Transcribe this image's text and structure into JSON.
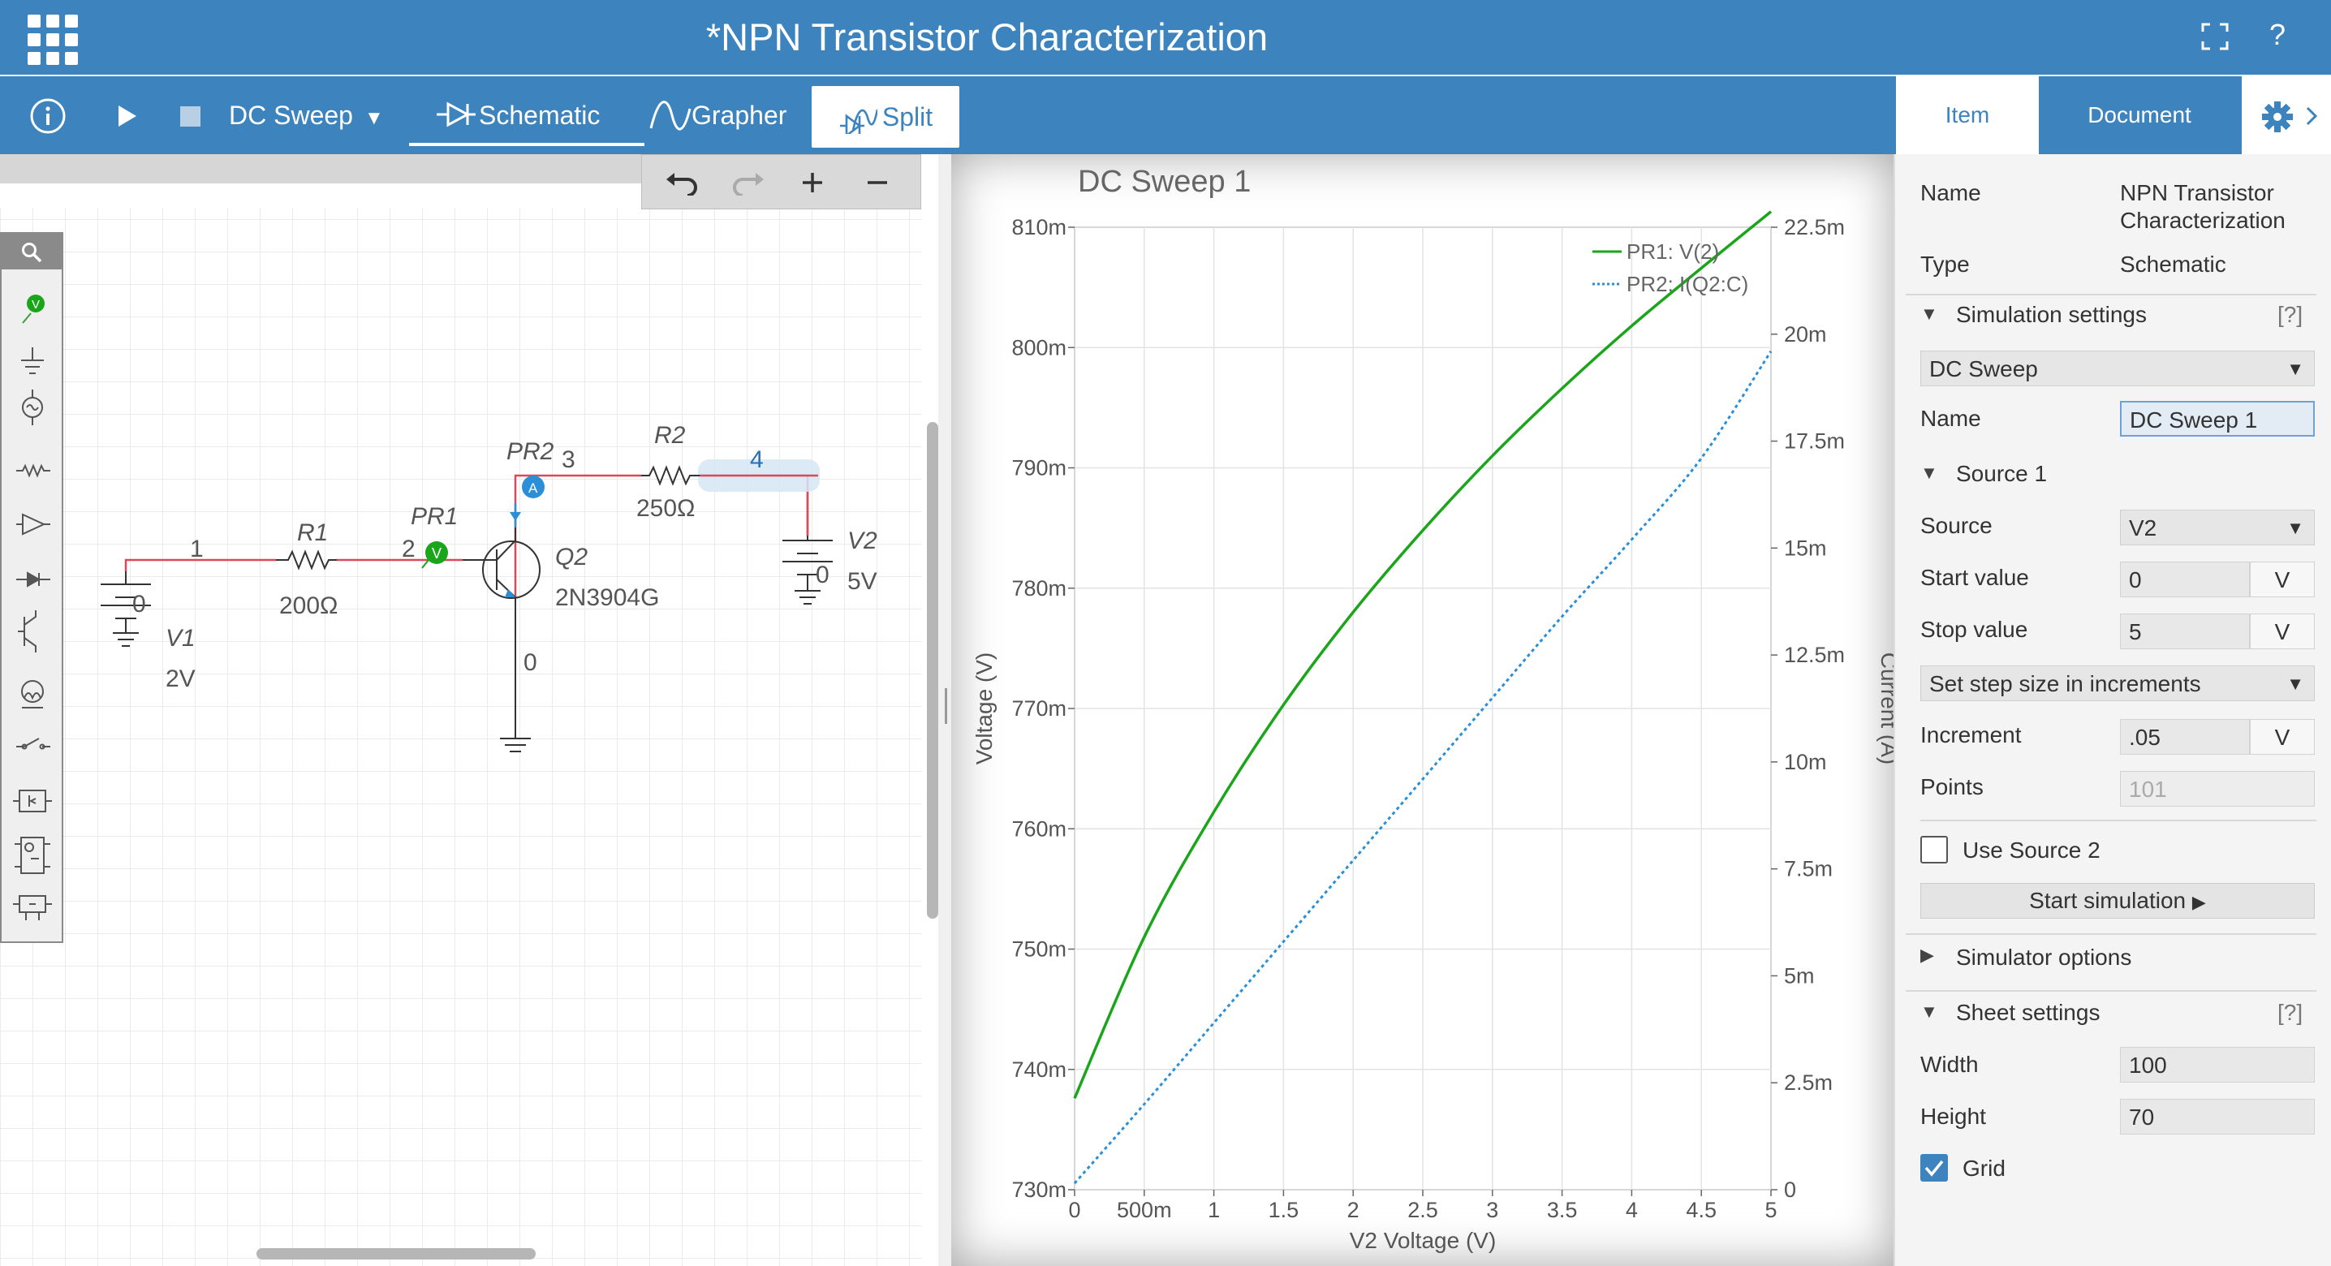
{
  "app": {
    "title": "*NPN Transistor Characterization",
    "fullscreen_icon": "fullscreen-icon",
    "help_label": "?"
  },
  "toolbar": {
    "analysis": "DC Sweep",
    "tabs": [
      "Schematic",
      "Grapher",
      "Split"
    ],
    "active_tab": "Split"
  },
  "schematic": {
    "nodes": [
      "1",
      "2",
      "3",
      "4",
      "0"
    ],
    "components": {
      "r1": {
        "name": "R1",
        "value": "200Ω"
      },
      "r2": {
        "name": "R2",
        "value": "250Ω"
      },
      "q2": {
        "name": "Q2",
        "model": "2N3904G"
      },
      "v1": {
        "name": "V1",
        "value": "2V"
      },
      "v2": {
        "name": "V2",
        "value": "5V"
      },
      "pr1": {
        "name": "PR1",
        "badge": "V"
      },
      "pr2": {
        "name": "PR2",
        "badge": "A"
      }
    },
    "ground_label": "0"
  },
  "chart_data": {
    "type": "line",
    "title": "DC Sweep 1",
    "xlabel": "V2 Voltage (V)",
    "ylabel": "Voltage (V)",
    "y2label": "Current (A)",
    "xlim": [
      0,
      5
    ],
    "ylim": [
      0.73,
      0.81
    ],
    "y2lim": [
      0,
      0.0225
    ],
    "x_ticks": [
      "0",
      "500m",
      "1",
      "1.5",
      "2",
      "2.5",
      "3",
      "3.5",
      "4",
      "4.5",
      "5"
    ],
    "y_ticks": [
      "730m",
      "740m",
      "750m",
      "760m",
      "770m",
      "780m",
      "790m",
      "800m",
      "810m"
    ],
    "y2_ticks": [
      "0",
      "2.5m",
      "5m",
      "7.5m",
      "10m",
      "12.5m",
      "15m",
      "17.5m",
      "20m",
      "22.5m"
    ],
    "legend_position": "top-right",
    "grid": true,
    "series": [
      {
        "name": "PR1: V(2)",
        "axis": "left",
        "color": "#1aa51a",
        "style": "solid",
        "x": [
          0,
          0.5,
          1,
          1.5,
          2,
          2.5,
          3,
          3.5,
          4,
          4.5,
          5
        ],
        "y": [
          0.7376,
          0.751,
          0.7614,
          0.7703,
          0.778,
          0.7848,
          0.791,
          0.7966,
          0.8018,
          0.8066,
          0.8113
        ]
      },
      {
        "name": "PR2: I(Q2:C)",
        "axis": "right",
        "color": "#2a8fd6",
        "style": "dotted",
        "x": [
          0,
          0.5,
          1,
          1.5,
          2,
          2.5,
          3,
          3.5,
          4,
          4.5,
          5
        ],
        "y": [
          0.00015,
          0.002,
          0.0039,
          0.0058,
          0.0077,
          0.0096,
          0.0115,
          0.0134,
          0.0152,
          0.0171,
          0.0196
        ]
      }
    ]
  },
  "panel": {
    "tabs": [
      "Item",
      "Document"
    ],
    "name_label": "Name",
    "name_value_line1": "NPN Transistor",
    "name_value_line2": "Characterization",
    "type_label": "Type",
    "type_value": "Schematic",
    "sim_settings": "Simulation settings",
    "help_tag": "[?]",
    "analysis_select": "DC Sweep",
    "sweep_name_label": "Name",
    "sweep_name_value": "DC Sweep 1",
    "source1": "Source 1",
    "source_label": "Source",
    "source_value": "V2",
    "start_label": "Start value",
    "start_value": "0",
    "stop_label": "Stop value",
    "stop_value": "5",
    "unit_v": "V",
    "step_mode": "Set step size in increments",
    "increment_label": "Increment",
    "increment_value": ".05",
    "points_label": "Points",
    "points_value": "101",
    "use_source2": "Use Source 2",
    "start_sim": "Start simulation",
    "sim_options": "Simulator options",
    "sheet_settings": "Sheet settings",
    "width_label": "Width",
    "width_value": "100",
    "height_label": "Height",
    "height_value": "70",
    "grid_label": "Grid"
  }
}
